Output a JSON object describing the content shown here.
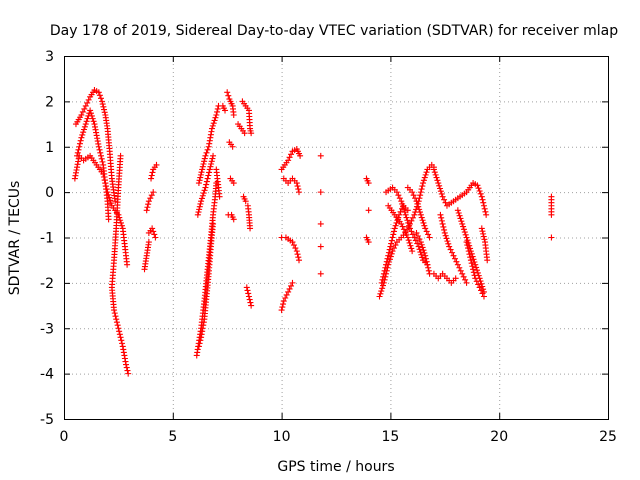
{
  "chart_data": {
    "type": "scatter",
    "title": "Day 178 of 2019, Sidereal Day-to-day VTEC variation (SDTVAR) for receiver mlap",
    "xlabel": "GPS time / hours",
    "ylabel": "SDTVAR / TECUs",
    "xlim": [
      0,
      25
    ],
    "ylim": [
      -5,
      3
    ],
    "xticks": [
      0,
      5,
      10,
      15,
      20,
      25
    ],
    "yticks": [
      -5,
      -4,
      -3,
      -2,
      -1,
      0,
      1,
      2,
      3
    ],
    "grid": true,
    "marker": "+",
    "color": "#ff0000",
    "tracks": [
      [
        [
          0.5,
          0.3
        ],
        [
          0.7,
          0.8
        ],
        [
          0.9,
          0.7
        ],
        [
          1.2,
          0.8
        ],
        [
          1.5,
          0.6
        ],
        [
          1.8,
          0.4
        ],
        [
          2.0,
          0.0
        ],
        [
          2.2,
          -0.3
        ],
        [
          2.5,
          -0.5
        ],
        [
          2.7,
          -0.8
        ],
        [
          2.9,
          -1.6
        ]
      ],
      [
        [
          0.55,
          1.5
        ],
        [
          0.8,
          1.7
        ],
        [
          1.0,
          1.9
        ],
        [
          1.2,
          2.1
        ],
        [
          1.4,
          2.25
        ],
        [
          1.6,
          2.2
        ],
        [
          1.75,
          2.0
        ],
        [
          1.9,
          1.7
        ],
        [
          2.0,
          1.4
        ],
        [
          2.1,
          0.9
        ],
        [
          2.2,
          0.3
        ],
        [
          2.35,
          -0.2
        ]
      ],
      [
        [
          0.6,
          0.8
        ],
        [
          0.8,
          1.2
        ],
        [
          1.0,
          1.5
        ],
        [
          1.2,
          1.8
        ],
        [
          1.4,
          1.5
        ],
        [
          1.6,
          1.0
        ],
        [
          1.8,
          0.6
        ],
        [
          1.9,
          0.2
        ],
        [
          2.0,
          -0.2
        ],
        [
          2.05,
          -0.6
        ]
      ],
      [
        [
          2.6,
          0.8
        ],
        [
          2.5,
          0.1
        ],
        [
          2.4,
          -0.8
        ],
        [
          2.3,
          -1.5
        ],
        [
          2.2,
          -2.1
        ],
        [
          2.3,
          -2.6
        ],
        [
          2.5,
          -3.0
        ],
        [
          2.7,
          -3.4
        ],
        [
          2.85,
          -3.8
        ],
        [
          2.95,
          -4.0
        ]
      ],
      [
        [
          4.0,
          0.3
        ],
        [
          4.1,
          0.5
        ],
        [
          4.25,
          0.6
        ]
      ],
      [
        [
          3.8,
          -0.4
        ],
        [
          3.9,
          -0.2
        ],
        [
          4.1,
          0.0
        ]
      ],
      [
        [
          3.9,
          -0.9
        ],
        [
          4.05,
          -0.8
        ],
        [
          4.2,
          -1.0
        ]
      ],
      [
        [
          3.7,
          -1.7
        ],
        [
          3.8,
          -1.4
        ],
        [
          3.9,
          -1.1
        ]
      ],
      [
        [
          6.1,
          -3.6
        ],
        [
          6.3,
          -3.0
        ],
        [
          6.45,
          -2.4
        ],
        [
          6.6,
          -1.7
        ],
        [
          6.75,
          -1.0
        ],
        [
          6.85,
          -0.5
        ],
        [
          6.95,
          -0.1
        ],
        [
          7.0,
          0.2
        ]
      ],
      [
        [
          6.2,
          -3.4
        ],
        [
          6.3,
          -3.2
        ],
        [
          6.45,
          -2.8
        ],
        [
          6.55,
          -2.3
        ],
        [
          6.65,
          -1.8
        ],
        [
          6.75,
          -1.2
        ],
        [
          6.85,
          -0.7
        ]
      ],
      [
        [
          6.2,
          0.2
        ],
        [
          6.35,
          0.5
        ],
        [
          6.5,
          0.8
        ],
        [
          6.65,
          1.0
        ],
        [
          6.8,
          1.4
        ],
        [
          7.0,
          1.7
        ],
        [
          7.1,
          1.9
        ]
      ],
      [
        [
          6.15,
          -0.5
        ],
        [
          6.3,
          -0.2
        ],
        [
          6.5,
          0.1
        ],
        [
          6.7,
          0.5
        ],
        [
          6.85,
          0.8
        ]
      ],
      [
        [
          7.0,
          0.5
        ],
        [
          7.05,
          0.3
        ],
        [
          7.1,
          0.1
        ],
        [
          7.15,
          -0.1
        ]
      ],
      [
        [
          7.5,
          2.2
        ],
        [
          7.6,
          2.05
        ],
        [
          7.75,
          1.9
        ],
        [
          7.8,
          1.7
        ]
      ],
      [
        [
          7.3,
          1.9
        ],
        [
          7.4,
          1.8
        ]
      ],
      [
        [
          7.6,
          1.1
        ],
        [
          7.75,
          1.0
        ]
      ],
      [
        [
          7.65,
          0.3
        ],
        [
          7.8,
          0.2
        ]
      ],
      [
        [
          7.55,
          -0.5
        ],
        [
          7.7,
          -0.5
        ],
        [
          7.8,
          -0.6
        ]
      ],
      [
        [
          8.2,
          2.0
        ],
        [
          8.35,
          1.9
        ],
        [
          8.5,
          1.8
        ],
        [
          8.55,
          1.4
        ],
        [
          8.6,
          1.3
        ]
      ],
      [
        [
          8.0,
          1.5
        ],
        [
          8.15,
          1.4
        ],
        [
          8.3,
          1.3
        ]
      ],
      [
        [
          8.25,
          -0.1
        ],
        [
          8.35,
          -0.2
        ]
      ],
      [
        [
          8.45,
          -0.3
        ],
        [
          8.5,
          -0.5
        ],
        [
          8.55,
          -0.8
        ]
      ],
      [
        [
          8.4,
          -2.1
        ],
        [
          8.5,
          -2.3
        ],
        [
          8.6,
          -2.5
        ]
      ],
      [
        [
          10.0,
          0.5
        ],
        [
          10.15,
          0.6
        ],
        [
          10.3,
          0.7
        ],
        [
          10.5,
          0.9
        ],
        [
          10.7,
          0.95
        ],
        [
          10.85,
          0.8
        ]
      ],
      [
        [
          10.1,
          0.3
        ],
        [
          10.3,
          0.2
        ],
        [
          10.5,
          0.3
        ],
        [
          10.7,
          0.2
        ],
        [
          10.8,
          0.0
        ]
      ],
      [
        [
          10.0,
          -1.0
        ],
        [
          10.2,
          -1.0
        ],
        [
          10.5,
          -1.1
        ],
        [
          10.7,
          -1.3
        ],
        [
          10.8,
          -1.5
        ]
      ],
      [
        [
          10.0,
          -2.6
        ],
        [
          10.1,
          -2.4
        ],
        [
          10.3,
          -2.2
        ],
        [
          10.5,
          -2.0
        ]
      ],
      [
        [
          11.8,
          0.8
        ]
      ],
      [
        [
          11.8,
          0.0
        ]
      ],
      [
        [
          11.8,
          -0.7
        ]
      ],
      [
        [
          11.8,
          -1.2
        ]
      ],
      [
        [
          11.8,
          -1.8
        ]
      ],
      [
        [
          13.9,
          0.3
        ],
        [
          14.0,
          0.2
        ]
      ],
      [
        [
          14.0,
          -0.4
        ]
      ],
      [
        [
          13.9,
          -1.0
        ],
        [
          14.0,
          -1.1
        ]
      ],
      [
        [
          14.5,
          -2.3
        ],
        [
          14.7,
          -2.0
        ],
        [
          14.9,
          -1.6
        ],
        [
          15.1,
          -1.3
        ],
        [
          15.3,
          -1.1
        ],
        [
          15.5,
          -1.0
        ],
        [
          15.7,
          -0.9
        ],
        [
          15.9,
          -0.7
        ],
        [
          16.1,
          -0.5
        ],
        [
          16.3,
          -0.2
        ],
        [
          16.5,
          0.2
        ],
        [
          16.7,
          0.5
        ],
        [
          16.9,
          0.6
        ],
        [
          17.0,
          0.55
        ]
      ],
      [
        [
          14.6,
          -2.0
        ],
        [
          14.8,
          -1.6
        ],
        [
          15.0,
          -1.2
        ],
        [
          15.2,
          -0.8
        ],
        [
          15.4,
          -0.5
        ],
        [
          15.6,
          -0.3
        ],
        [
          15.8,
          -0.4
        ]
      ],
      [
        [
          14.8,
          0.0
        ],
        [
          15.1,
          0.1
        ],
        [
          15.3,
          0.0
        ],
        [
          15.5,
          -0.2
        ],
        [
          15.7,
          -0.5
        ],
        [
          15.9,
          -0.8
        ],
        [
          16.1,
          -1.0
        ],
        [
          16.3,
          -1.2
        ],
        [
          16.5,
          -1.5
        ],
        [
          16.7,
          -1.6
        ]
      ],
      [
        [
          14.9,
          -0.3
        ],
        [
          15.2,
          -0.5
        ],
        [
          15.5,
          -0.7
        ],
        [
          15.8,
          -1.0
        ],
        [
          16.0,
          -1.3
        ]
      ],
      [
        [
          15.8,
          0.1
        ],
        [
          16.0,
          0.0
        ],
        [
          16.2,
          -0.2
        ],
        [
          16.4,
          -0.5
        ],
        [
          16.6,
          -0.8
        ],
        [
          16.8,
          -1.0
        ]
      ],
      [
        [
          16.2,
          -0.9
        ],
        [
          16.4,
          -1.1
        ],
        [
          16.6,
          -1.4
        ],
        [
          16.8,
          -1.8
        ]
      ],
      [
        [
          17.0,
          0.5
        ],
        [
          17.2,
          0.2
        ],
        [
          17.4,
          -0.1
        ],
        [
          17.6,
          -0.3
        ],
        [
          17.9,
          -0.2
        ],
        [
          18.2,
          -0.1
        ],
        [
          18.5,
          0.0
        ],
        [
          18.8,
          0.2
        ],
        [
          19.0,
          0.15
        ],
        [
          19.2,
          -0.1
        ],
        [
          19.4,
          -0.5
        ]
      ],
      [
        [
          17.3,
          -0.5
        ],
        [
          17.5,
          -0.9
        ],
        [
          17.7,
          -1.2
        ],
        [
          17.9,
          -1.4
        ],
        [
          18.1,
          -1.6
        ],
        [
          18.3,
          -1.8
        ],
        [
          18.5,
          -2.0
        ]
      ],
      [
        [
          18.1,
          -0.4
        ],
        [
          18.3,
          -0.7
        ],
        [
          18.5,
          -1.0
        ],
        [
          18.7,
          -1.3
        ],
        [
          18.9,
          -1.6
        ],
        [
          19.1,
          -1.9
        ],
        [
          19.3,
          -2.2
        ]
      ],
      [
        [
          18.5,
          -1.1
        ],
        [
          18.7,
          -1.5
        ],
        [
          18.9,
          -1.9
        ],
        [
          19.1,
          -2.1
        ],
        [
          19.3,
          -2.3
        ]
      ],
      [
        [
          19.2,
          -0.8
        ],
        [
          19.35,
          -1.1
        ],
        [
          19.45,
          -1.5
        ]
      ],
      [
        [
          17.0,
          -1.8
        ],
        [
          17.2,
          -1.9
        ],
        [
          17.4,
          -1.8
        ],
        [
          17.6,
          -1.9
        ],
        [
          17.8,
          -2.0
        ],
        [
          18.0,
          -1.9
        ]
      ],
      [
        [
          22.4,
          -0.1
        ],
        [
          22.4,
          -0.3
        ],
        [
          22.4,
          -0.5
        ]
      ],
      [
        [
          22.4,
          -1.0
        ]
      ]
    ]
  }
}
